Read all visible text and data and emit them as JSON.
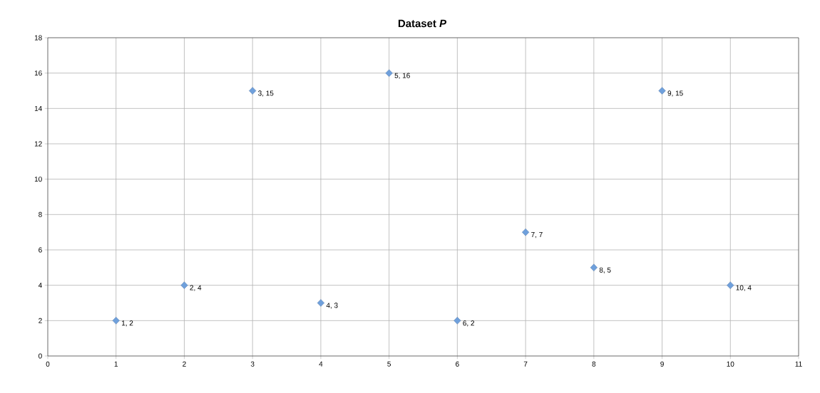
{
  "chart_data": {
    "type": "scatter",
    "title": "Dataset *P*",
    "x": [
      1,
      2,
      3,
      4,
      5,
      6,
      7,
      8,
      9,
      10
    ],
    "values": [
      2,
      4,
      15,
      3,
      16,
      2,
      7,
      5,
      15,
      4
    ],
    "value_labels": [
      "1, 2",
      "2, 4",
      "3, 15",
      "4, 3",
      "5, 16",
      "6, 2",
      "7, 7",
      "8, 5",
      "9, 15",
      "10, 4"
    ],
    "color": "#6fa0dc",
    "marker": "diamond",
    "grid": true,
    "xlim": [
      0,
      11
    ],
    "xticks": [
      0,
      1,
      2,
      3,
      4,
      5,
      6,
      7,
      8,
      9,
      10,
      11
    ],
    "ylim": [
      0,
      18
    ],
    "yticks": [
      0,
      2,
      4,
      6,
      8,
      10,
      12,
      14,
      16,
      18
    ]
  }
}
